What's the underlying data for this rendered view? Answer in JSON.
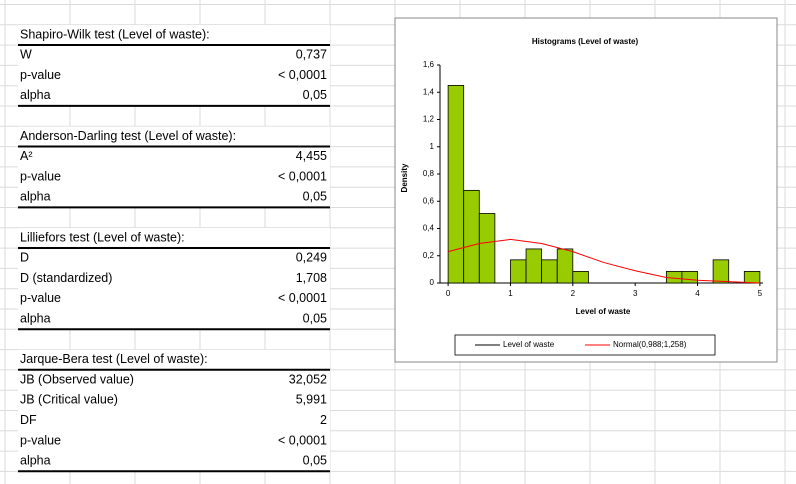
{
  "tables": [
    {
      "title": "Shapiro-Wilk test (Level of waste):",
      "rows": [
        [
          "W",
          "0,737"
        ],
        [
          "p-value",
          "< 0,0001"
        ],
        [
          "alpha",
          "0,05"
        ]
      ]
    },
    {
      "title": "Anderson-Darling test (Level of waste):",
      "rows": [
        [
          "A²",
          "4,455"
        ],
        [
          "p-value",
          "< 0,0001"
        ],
        [
          "alpha",
          "0,05"
        ]
      ]
    },
    {
      "title": "Lilliefors test (Level of waste):",
      "rows": [
        [
          "D",
          "0,249"
        ],
        [
          "D (standardized)",
          "1,708"
        ],
        [
          "p-value",
          "< 0,0001"
        ],
        [
          "alpha",
          "0,05"
        ]
      ]
    },
    {
      "title": "Jarque-Bera test (Level of waste):",
      "rows": [
        [
          "JB (Observed value)",
          "32,052"
        ],
        [
          "JB (Critical value)",
          "5,991"
        ],
        [
          "DF",
          "2"
        ],
        [
          "p-value",
          "< 0,0001"
        ],
        [
          "alpha",
          "0,05"
        ]
      ]
    }
  ],
  "chart_data": {
    "type": "histogram",
    "title": "Histograms (Level of waste)",
    "x_label": "Level of waste",
    "y_label": "Density",
    "bins": [
      0,
      0.25,
      0.5,
      0.75,
      1,
      1.25,
      1.5,
      1.75,
      2,
      2.25,
      2.5,
      2.75,
      3,
      3.25,
      3.5,
      3.75,
      4,
      4.25,
      4.5,
      4.75,
      5
    ],
    "series": [
      {
        "name": "Level of waste",
        "color": "#99cc00",
        "values": [
          1.45,
          0.68,
          0.51,
          0,
          0.17,
          0.25,
          0.17,
          0.25,
          0.085,
          0,
          0,
          0,
          0,
          0,
          0.085,
          0.085,
          0,
          0.17,
          0,
          0.085
        ]
      }
    ],
    "curve": {
      "name": "Normal(0,988;1,258)",
      "color": "#ff0000",
      "x": [
        0,
        0.5,
        1,
        1.5,
        2,
        2.5,
        3,
        3.5,
        4,
        4.5,
        5
      ],
      "values": [
        0.23,
        0.29,
        0.32,
        0.29,
        0.23,
        0.15,
        0.09,
        0.04,
        0.02,
        0.01,
        0
      ]
    },
    "xlim": [
      -0.13,
      5.05
    ],
    "ylim": [
      0,
      1.6
    ],
    "xticks": [
      0,
      1,
      2,
      3,
      4,
      5
    ],
    "yticks": [
      0,
      {
        "value": 0.2,
        "label": "0,2"
      },
      {
        "value": 0.4,
        "label": "0,4"
      },
      {
        "value": 0.6,
        "label": "0,6"
      },
      {
        "value": 0.8,
        "label": "0,8"
      },
      1,
      {
        "value": 1.2,
        "label": "1,2"
      },
      {
        "value": 1.4,
        "label": "1,4"
      },
      {
        "value": 1.6,
        "label": "1,6"
      }
    ]
  }
}
